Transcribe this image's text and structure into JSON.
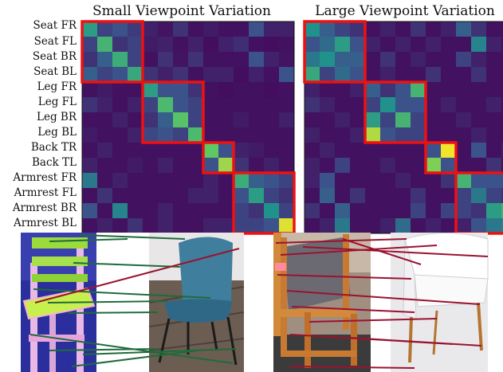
{
  "chart_data": [
    {
      "type": "heatmap",
      "title": "Small Viewpoint Variation",
      "rows": [
        "Seat FR",
        "Seat FL",
        "Seat BR",
        "Seat BL",
        "Leg FR",
        "Leg FL",
        "Leg BR",
        "Leg BL",
        "Back TR",
        "Back TL",
        "Armrest FR",
        "Armrest FL",
        "Armrest BR",
        "Armrest BL"
      ],
      "colormap": "viridis",
      "highlight_groups": [
        [
          0,
          4
        ],
        [
          4,
          8
        ],
        [
          8,
          10
        ],
        [
          10,
          14
        ]
      ],
      "values": [
        [
          0.55,
          0.2,
          0.25,
          0.18,
          0.1,
          0.06,
          0.15,
          0.05,
          0.08,
          0.05,
          0.05,
          0.25,
          0.1,
          0.1
        ],
        [
          0.2,
          0.65,
          0.15,
          0.2,
          0.08,
          0.1,
          0.05,
          0.1,
          0.04,
          0.1,
          0.14,
          0.05,
          0.04,
          0.05
        ],
        [
          0.15,
          0.3,
          0.62,
          0.2,
          0.05,
          0.15,
          0.06,
          0.15,
          0.05,
          0.05,
          0.05,
          0.25,
          0.1,
          0.06
        ],
        [
          0.3,
          0.2,
          0.25,
          0.6,
          0.15,
          0.1,
          0.15,
          0.05,
          0.1,
          0.1,
          0.04,
          0.1,
          0.05,
          0.25
        ],
        [
          0.05,
          0.08,
          0.05,
          0.05,
          0.55,
          0.25,
          0.25,
          0.15,
          0.05,
          0.04,
          0.05,
          0.05,
          0.04,
          0.05
        ],
        [
          0.15,
          0.1,
          0.05,
          0.1,
          0.2,
          0.68,
          0.25,
          0.2,
          0.05,
          0.05,
          0.05,
          0.05,
          0.05,
          0.05
        ],
        [
          0.05,
          0.05,
          0.1,
          0.05,
          0.15,
          0.3,
          0.72,
          0.2,
          0.05,
          0.05,
          0.08,
          0.05,
          0.05,
          0.1
        ],
        [
          0.08,
          0.05,
          0.05,
          0.1,
          0.22,
          0.25,
          0.2,
          0.68,
          0.05,
          0.05,
          0.05,
          0.05,
          0.05,
          0.05
        ],
        [
          0.05,
          0.1,
          0.05,
          0.05,
          0.05,
          0.05,
          0.05,
          0.05,
          0.75,
          0.25,
          0.1,
          0.08,
          0.05,
          0.05
        ],
        [
          0.1,
          0.05,
          0.05,
          0.08,
          0.05,
          0.1,
          0.05,
          0.05,
          0.25,
          0.85,
          0.15,
          0.05,
          0.1,
          0.05
        ],
        [
          0.4,
          0.05,
          0.1,
          0.05,
          0.05,
          0.05,
          0.05,
          0.05,
          0.1,
          0.05,
          0.62,
          0.3,
          0.25,
          0.2
        ],
        [
          0.05,
          0.15,
          0.05,
          0.05,
          0.05,
          0.05,
          0.05,
          0.1,
          0.1,
          0.05,
          0.25,
          0.55,
          0.2,
          0.15
        ],
        [
          0.25,
          0.05,
          0.45,
          0.05,
          0.05,
          0.1,
          0.05,
          0.05,
          0.05,
          0.05,
          0.2,
          0.15,
          0.5,
          0.2
        ],
        [
          0.05,
          0.1,
          0.05,
          0.15,
          0.05,
          0.1,
          0.05,
          0.05,
          0.1,
          0.1,
          0.2,
          0.2,
          0.25,
          0.95
        ]
      ]
    },
    {
      "type": "heatmap",
      "title": "Large Viewpoint Variation",
      "rows": [
        "Seat FR",
        "Seat FL",
        "Seat BR",
        "Seat BL",
        "Leg FR",
        "Leg FL",
        "Leg BR",
        "Leg BL",
        "Back TR",
        "Back TL",
        "Armrest FR",
        "Armrest FL",
        "Armrest BR",
        "Armrest BL"
      ],
      "colormap": "viridis",
      "highlight_groups": [
        [
          0,
          4
        ],
        [
          4,
          8
        ],
        [
          8,
          10
        ],
        [
          10,
          14
        ]
      ],
      "values": [
        [
          0.5,
          0.3,
          0.2,
          0.15,
          0.05,
          0.1,
          0.05,
          0.15,
          0.05,
          0.1,
          0.3,
          0.15,
          0.05,
          0.05
        ],
        [
          0.25,
          0.35,
          0.55,
          0.25,
          0.1,
          0.05,
          0.1,
          0.05,
          0.1,
          0.05,
          0.05,
          0.45,
          0.1,
          0.05
        ],
        [
          0.4,
          0.5,
          0.3,
          0.3,
          0.05,
          0.15,
          0.05,
          0.1,
          0.05,
          0.05,
          0.2,
          0.1,
          0.05,
          0.05
        ],
        [
          0.6,
          0.2,
          0.35,
          0.25,
          0.05,
          0.1,
          0.05,
          0.05,
          0.15,
          0.05,
          0.05,
          0.15,
          0.05,
          0.05
        ],
        [
          0.1,
          0.05,
          0.05,
          0.1,
          0.3,
          0.15,
          0.25,
          0.65,
          0.05,
          0.05,
          0.05,
          0.05,
          0.05,
          0.05
        ],
        [
          0.15,
          0.1,
          0.05,
          0.05,
          0.2,
          0.5,
          0.25,
          0.25,
          0.05,
          0.1,
          0.05,
          0.05,
          0.1,
          0.05
        ],
        [
          0.05,
          0.05,
          0.1,
          0.05,
          0.55,
          0.2,
          0.65,
          0.2,
          0.05,
          0.05,
          0.1,
          0.05,
          0.05,
          0.05
        ],
        [
          0.1,
          0.05,
          0.05,
          0.1,
          0.88,
          0.25,
          0.2,
          0.2,
          0.05,
          0.05,
          0.05,
          0.1,
          0.05,
          0.05
        ],
        [
          0.05,
          0.1,
          0.05,
          0.05,
          0.05,
          0.05,
          0.05,
          0.05,
          0.25,
          0.98,
          0.05,
          0.25,
          0.05,
          0.1
        ],
        [
          0.1,
          0.05,
          0.2,
          0.05,
          0.05,
          0.1,
          0.05,
          0.05,
          0.8,
          0.25,
          0.05,
          0.05,
          0.15,
          0.05
        ],
        [
          0.1,
          0.25,
          0.05,
          0.05,
          0.05,
          0.05,
          0.1,
          0.05,
          0.05,
          0.15,
          0.65,
          0.25,
          0.25,
          0.25
        ],
        [
          0.05,
          0.3,
          0.05,
          0.15,
          0.05,
          0.05,
          0.05,
          0.15,
          0.05,
          0.05,
          0.2,
          0.4,
          0.2,
          0.15
        ],
        [
          0.15,
          0.05,
          0.3,
          0.05,
          0.05,
          0.05,
          0.05,
          0.2,
          0.05,
          0.2,
          0.2,
          0.15,
          0.55,
          0.65
        ],
        [
          0.05,
          0.1,
          0.4,
          0.05,
          0.05,
          0.1,
          0.35,
          0.05,
          0.1,
          0.05,
          0.1,
          0.25,
          0.4,
          0.45
        ]
      ]
    }
  ],
  "colors": {
    "highlight": "#ee1111",
    "match_good": "#1f6b3a",
    "match_bad": "#9b1230"
  },
  "photos": [
    {
      "name": "pair-small-viewpoint",
      "match_color": "match_good"
    },
    {
      "name": "pair-large-viewpoint",
      "match_color": "match_bad"
    }
  ]
}
